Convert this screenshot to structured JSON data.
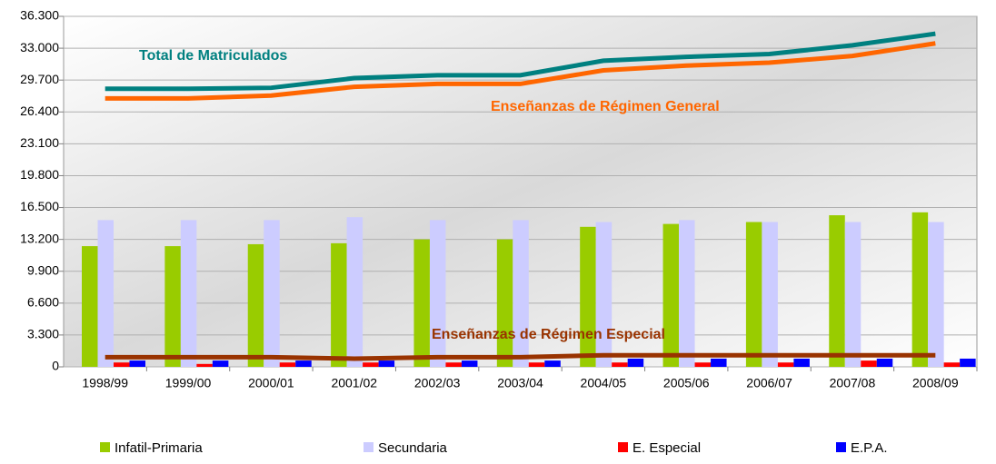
{
  "chart_data": {
    "type": "bar",
    "categories": [
      "1998/99",
      "1999/00",
      "2000/01",
      "2001/02",
      "2002/03",
      "2003/04",
      "2004/05",
      "2005/06",
      "2006/07",
      "2007/08",
      "2008/09"
    ],
    "series": [
      {
        "name": "Infatil-Primaria",
        "type": "bar",
        "color": "#99cc00",
        "values": [
          12500,
          12500,
          12700,
          12800,
          13200,
          13200,
          14500,
          14800,
          15000,
          15700,
          16000
        ]
      },
      {
        "name": "Secundaria",
        "type": "bar",
        "color": "#ccccff",
        "values": [
          15200,
          15200,
          15200,
          15500,
          15200,
          15200,
          15000,
          15200,
          15000,
          15000,
          15000
        ]
      },
      {
        "name": "E. Especial",
        "type": "bar",
        "color": "#ff0000",
        "values": [
          450,
          300,
          450,
          450,
          450,
          450,
          450,
          450,
          450,
          650,
          450
        ]
      },
      {
        "name": "E.P.A.",
        "type": "bar",
        "color": "#0000ff",
        "values": [
          650,
          650,
          650,
          650,
          650,
          650,
          850,
          850,
          850,
          850,
          850
        ]
      },
      {
        "name": "Total de Matriculados",
        "type": "line",
        "color": "#008080",
        "values": [
          28800,
          28800,
          28900,
          29900,
          30200,
          30200,
          31700,
          32100,
          32400,
          33300,
          34500
        ]
      },
      {
        "name": "Enseñanzas de Régimen General",
        "type": "line",
        "color": "#ff6600",
        "values": [
          27800,
          27800,
          28100,
          29000,
          29300,
          29300,
          30700,
          31200,
          31500,
          32200,
          33500
        ]
      },
      {
        "name": "Enseñanzas de Régimen Especial",
        "type": "line",
        "color": "#993300",
        "values": [
          1000,
          1000,
          1000,
          850,
          1000,
          1000,
          1200,
          1200,
          1200,
          1200,
          1200
        ]
      }
    ],
    "ylim": [
      0,
      36300
    ],
    "yticks": [
      0,
      {
        "value": 3300,
        "label": "3.300"
      },
      {
        "value": 6600,
        "label": "6.600"
      },
      {
        "value": 9900,
        "label": "9.900"
      },
      {
        "value": 13200,
        "label": "13.200"
      },
      {
        "value": 16500,
        "label": "16.500"
      },
      {
        "value": 19800,
        "label": "19.800"
      },
      {
        "value": 23100,
        "label": "23.100"
      },
      {
        "value": 26400,
        "label": "26.400"
      },
      {
        "value": 29700,
        "label": "29.700"
      },
      {
        "value": 33000,
        "label": "33.000"
      },
      {
        "value": 36300,
        "label": "36.300"
      }
    ],
    "grid": true
  }
}
